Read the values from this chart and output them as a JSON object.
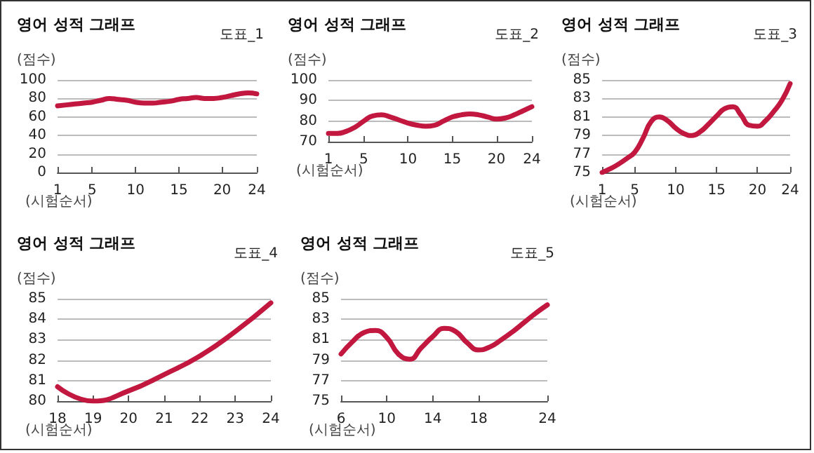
{
  "chart_data": [
    {
      "type": "line",
      "title": "영어 성적 그래프",
      "subtitle": "도표_1",
      "ylabel": "(점수)",
      "xlabel": "(시험순서)",
      "color": "#c2173f",
      "marker": "none",
      "line_style": "solid",
      "grid": "y",
      "x": [
        1,
        2,
        3,
        4,
        5,
        6,
        7,
        8,
        9,
        10,
        11,
        12,
        13,
        14,
        15,
        16,
        17,
        18,
        19,
        20,
        21,
        22,
        23,
        24
      ],
      "values": [
        72,
        73,
        74,
        75,
        76,
        78,
        80,
        79,
        78,
        76,
        75,
        75,
        76,
        77,
        79,
        80,
        81,
        80,
        80,
        81,
        83,
        85,
        86,
        85
      ],
      "xlim": [
        1,
        24
      ],
      "xticks": [
        1,
        5,
        10,
        15,
        20,
        24
      ],
      "ylim": [
        0,
        100
      ],
      "yticks": [
        0,
        20,
        40,
        60,
        80,
        100
      ]
    },
    {
      "type": "line",
      "title": "영어 성적 그래프",
      "subtitle": "도표_2",
      "ylabel": "(점수)",
      "xlabel": "(시험순서)",
      "color": "#c2173f",
      "marker": "none",
      "line_style": "solid",
      "grid": "y",
      "x": [
        1,
        2,
        3,
        4,
        5,
        6,
        7,
        8,
        9,
        10,
        11,
        12,
        13,
        14,
        15,
        16,
        17,
        18,
        19,
        20,
        21,
        22,
        23,
        24
      ],
      "values": [
        74,
        74,
        75,
        77,
        80,
        82.5,
        83,
        82,
        80.5,
        79,
        78,
        77.5,
        78,
        80,
        82,
        83,
        83.5,
        83,
        82,
        81,
        81.5,
        83,
        85,
        87
      ],
      "xlim": [
        1,
        24
      ],
      "xticks": [
        1,
        5,
        10,
        15,
        20,
        24
      ],
      "ylim": [
        70,
        100
      ],
      "yticks": [
        70,
        80,
        90,
        100
      ]
    },
    {
      "type": "line",
      "title": "영어 성적 그래프",
      "subtitle": "도표_3",
      "ylabel": "(점수)",
      "xlabel": "(시험순서)",
      "color": "#c2173f",
      "marker": "none",
      "line_style": "solid",
      "grid": "y",
      "x": [
        1,
        2,
        3,
        4,
        5,
        6,
        7,
        8,
        9,
        10,
        11,
        12,
        13,
        14,
        15,
        16,
        17,
        18,
        19,
        20,
        21,
        22,
        23,
        24
      ],
      "values": [
        75,
        75.4,
        75.9,
        76.5,
        77.2,
        78.7,
        80.5,
        81,
        80.6,
        79.8,
        79.2,
        79,
        79.4,
        80.2,
        81.1,
        81.9,
        82.1,
        81.2,
        80.1,
        80,
        80.6,
        81.6,
        82.8,
        84.6
      ],
      "xlim": [
        1,
        24
      ],
      "xticks": [
        1,
        5,
        10,
        15,
        20,
        24
      ],
      "ylim": [
        75,
        85
      ],
      "yticks": [
        75,
        77,
        79,
        81,
        83,
        85
      ]
    },
    {
      "type": "line",
      "title": "영어 성적 그래프",
      "subtitle": "도표_4",
      "ylabel": "(점수)",
      "xlabel": "(시험순서)",
      "color": "#c2173f",
      "marker": "none",
      "line_style": "solid",
      "grid": "y",
      "x": [
        18,
        19,
        20,
        21,
        22,
        23,
        24
      ],
      "values": [
        80.7,
        80,
        80.5,
        81.3,
        82.2,
        83.4,
        84.8
      ],
      "xlim": [
        18,
        24
      ],
      "xticks": [
        18,
        19,
        20,
        21,
        22,
        23,
        24
      ],
      "ylim": [
        80,
        85
      ],
      "yticks": [
        80,
        81,
        82,
        83,
        84,
        85
      ]
    },
    {
      "type": "line",
      "title": "영어 성적 그래프",
      "subtitle": "도표_5",
      "ylabel": "(점수)",
      "xlabel": "(시험순서)",
      "color": "#c2173f",
      "marker": "none",
      "line_style": "solid",
      "grid": "y",
      "x": [
        6,
        7,
        8,
        9,
        10,
        11,
        12,
        13,
        14,
        15,
        16,
        17,
        18,
        19,
        20,
        21,
        22,
        23,
        24
      ],
      "values": [
        79.6,
        80.8,
        81.7,
        81.9,
        81.2,
        79.6,
        79.1,
        80.2,
        81.3,
        82.1,
        81.8,
        80.7,
        80,
        80.3,
        81,
        81.8,
        82.7,
        83.6,
        84.4
      ],
      "xlim": [
        6,
        24
      ],
      "xticks": [
        6,
        10,
        14,
        18,
        24
      ],
      "ylim": [
        75,
        85
      ],
      "yticks": [
        75,
        77,
        79,
        81,
        83,
        85
      ]
    }
  ]
}
